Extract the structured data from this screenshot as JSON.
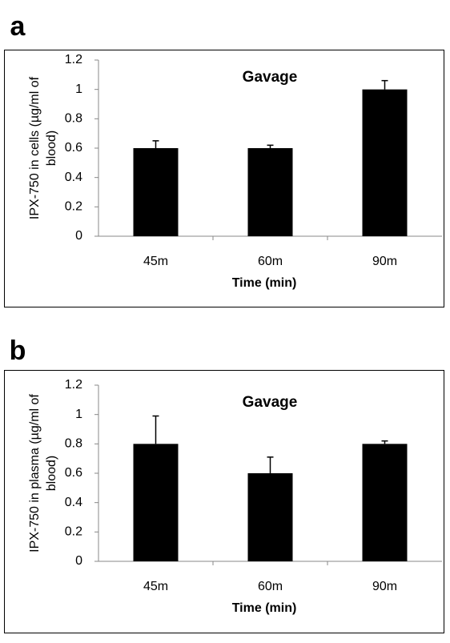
{
  "chart_data": [
    {
      "type": "bar",
      "panel": "a",
      "title": "Gavage",
      "ylabel": [
        "IPX-750 in cells (µg/ml of",
        "blood)"
      ],
      "xlabel": "Time (min)",
      "categories": [
        "45m",
        "60m",
        "90m"
      ],
      "values": [
        0.6,
        0.6,
        1.0
      ],
      "errors": [
        0.05,
        0.02,
        0.06
      ],
      "color": "#000000",
      "ylim": [
        0,
        1.2
      ],
      "yticks": [
        0,
        0.2,
        0.4,
        0.6,
        0.8,
        1,
        1.2
      ],
      "grid": false
    },
    {
      "type": "bar",
      "panel": "b",
      "title": "Gavage",
      "ylabel": [
        "IPX-750 in plasma (µg/ml of",
        "blood)"
      ],
      "xlabel": "Time (min)",
      "categories": [
        "45m",
        "60m",
        "90m"
      ],
      "values": [
        0.8,
        0.6,
        0.8
      ],
      "errors": [
        0.19,
        0.11,
        0.02
      ],
      "color": "#000000",
      "ylim": [
        0,
        1.2
      ],
      "yticks": [
        0,
        0.2,
        0.4,
        0.6,
        0.8,
        1,
        1.2
      ],
      "grid": false
    }
  ]
}
